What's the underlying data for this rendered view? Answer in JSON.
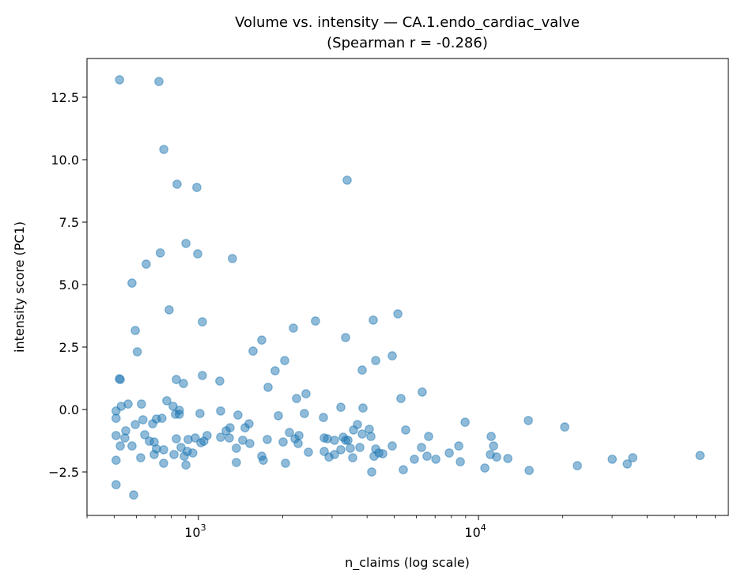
{
  "chart_data": {
    "type": "scatter",
    "title_line1": "Volume vs. intensity — CA.1.endo_cardiac_valve",
    "title_line2": "(Spearman r = -0.286)",
    "xlabel": "n_claims (log scale)",
    "ylabel": "intensity score (PC1)",
    "xscale": "log",
    "xlim": [
      400,
      78000
    ],
    "ylim": [
      -4.24,
      14.05
    ],
    "x_major_ticks": [
      {
        "value": 1000,
        "base": "10",
        "exp": "3"
      },
      {
        "value": 10000,
        "base": "10",
        "exp": "4"
      }
    ],
    "y_ticks": [
      {
        "value": -2.5,
        "label": "−2.5"
      },
      {
        "value": 0,
        "label": "0.0"
      },
      {
        "value": 2.5,
        "label": "2.5"
      },
      {
        "value": 5,
        "label": "5.0"
      },
      {
        "value": 7.5,
        "label": "7.5"
      },
      {
        "value": 10,
        "label": "10.0"
      },
      {
        "value": 12.5,
        "label": "12.5"
      }
    ],
    "grid": false,
    "marker_color": "#1f77b4",
    "marker_alpha": 0.5,
    "points": [
      [
        523,
        13.2
      ],
      [
        723,
        13.13
      ],
      [
        752,
        10.41
      ],
      [
        839,
        9.02
      ],
      [
        987,
        8.89
      ],
      [
        3396,
        9.18
      ],
      [
        902,
        6.65
      ],
      [
        731,
        6.27
      ],
      [
        994,
        6.23
      ],
      [
        1322,
        6.04
      ],
      [
        651,
        5.82
      ],
      [
        579,
        5.06
      ],
      [
        786,
        3.99
      ],
      [
        1033,
        3.51
      ],
      [
        595,
        3.16
      ],
      [
        605,
        2.31
      ],
      [
        2618,
        3.54
      ],
      [
        2183,
        3.26
      ],
      [
        4210,
        3.58
      ],
      [
        5152,
        3.83
      ],
      [
        3352,
        2.88
      ],
      [
        1567,
        2.34
      ],
      [
        1683,
        2.78
      ],
      [
        4922,
        2.15
      ],
      [
        4295,
        1.96
      ],
      [
        2032,
        1.96
      ],
      [
        1879,
        1.55
      ],
      [
        3844,
        1.58
      ],
      [
        522,
        1.23
      ],
      [
        508,
        -0.35
      ],
      [
        508,
        -0.06
      ],
      [
        530,
        0.13
      ],
      [
        561,
        0.22
      ],
      [
        626,
        0.22
      ],
      [
        771,
        0.35
      ],
      [
        812,
        0.13
      ],
      [
        855,
        -0.03
      ],
      [
        828,
        -0.19
      ],
      [
        855,
        -0.19
      ],
      [
        1013,
        -0.16
      ],
      [
        1200,
        -0.06
      ],
      [
        1384,
        -0.22
      ],
      [
        1929,
        -0.25
      ],
      [
        2390,
        -0.16
      ],
      [
        2795,
        -0.32
      ],
      [
        3225,
        0.09
      ],
      [
        2241,
        0.44
      ],
      [
        2421,
        0.63
      ],
      [
        1773,
        0.89
      ],
      [
        634,
        -0.41
      ],
      [
        595,
        -0.6
      ],
      [
        686,
        -0.57
      ],
      [
        708,
        -0.38
      ],
      [
        741,
        -0.35
      ],
      [
        550,
        -0.85
      ],
      [
        508,
        -1.04
      ],
      [
        546,
        -1.14
      ],
      [
        643,
        -1.01
      ],
      [
        668,
        -1.27
      ],
      [
        695,
        -1.3
      ],
      [
        526,
        -1.46
      ],
      [
        579,
        -1.46
      ],
      [
        708,
        -1.58
      ],
      [
        751,
        -1.61
      ],
      [
        695,
        -1.8
      ],
      [
        622,
        -1.93
      ],
      [
        508,
        -2.03
      ],
      [
        751,
        -2.15
      ],
      [
        818,
        -1.8
      ],
      [
        834,
        -1.17
      ],
      [
        867,
        -1.52
      ],
      [
        919,
        -1.2
      ],
      [
        974,
        -1.14
      ],
      [
        1020,
        -1.33
      ],
      [
        1046,
        -1.27
      ],
      [
        1074,
        -1.04
      ],
      [
        913,
        -1.68
      ],
      [
        955,
        -1.74
      ],
      [
        890,
        -1.87
      ],
      [
        902,
        -2.22
      ],
      [
        1200,
        -1.11
      ],
      [
        1289,
        -1.14
      ],
      [
        1256,
        -0.85
      ],
      [
        1297,
        -0.73
      ],
      [
        1439,
        -1.23
      ],
      [
        1366,
        -1.55
      ],
      [
        1526,
        -1.36
      ],
      [
        1467,
        -0.73
      ],
      [
        1516,
        -0.57
      ],
      [
        1366,
        -2.12
      ],
      [
        1683,
        -1.87
      ],
      [
        1704,
        -2.03
      ],
      [
        1761,
        -1.2
      ],
      [
        2006,
        -1.3
      ],
      [
        2113,
        -0.92
      ],
      [
        2211,
        -1.17
      ],
      [
        2285,
        -1.04
      ],
      [
        2270,
        -1.36
      ],
      [
        2470,
        -1.71
      ],
      [
        2045,
        -2.15
      ],
      [
        2813,
        -1.14
      ],
      [
        2887,
        -1.17
      ],
      [
        3062,
        -1.23
      ],
      [
        3289,
        -1.11
      ],
      [
        3352,
        -1.23
      ],
      [
        2813,
        -1.68
      ],
      [
        2925,
        -1.9
      ],
      [
        3062,
        -1.8
      ],
      [
        3225,
        -1.61
      ],
      [
        508,
        -3.01
      ],
      [
        587,
        -3.42
      ],
      [
        526,
        1.2
      ],
      [
        834,
        1.2
      ],
      [
        884,
        1.04
      ],
      [
        1192,
        1.14
      ],
      [
        1033,
        1.36
      ],
      [
        3420,
        -1.23
      ],
      [
        3487,
        -1.55
      ],
      [
        3554,
        -1.93
      ],
      [
        3577,
        -0.82
      ],
      [
        3697,
        -0.6
      ],
      [
        3869,
        0.06
      ],
      [
        3844,
        -0.98
      ],
      [
        4076,
        -0.79
      ],
      [
        4129,
        -1.08
      ],
      [
        3770,
        -1.52
      ],
      [
        4156,
        -2.5
      ],
      [
        4295,
        -1.58
      ],
      [
        4407,
        -1.74
      ],
      [
        4238,
        -1.87
      ],
      [
        4551,
        -1.77
      ],
      [
        4922,
        -1.46
      ],
      [
        5286,
        0.44
      ],
      [
        6296,
        0.7
      ],
      [
        5497,
        -0.82
      ],
      [
        5390,
        -2.41
      ],
      [
        5905,
        -1.99
      ],
      [
        6260,
        -1.52
      ],
      [
        6552,
        -1.87
      ],
      [
        6638,
        -1.08
      ],
      [
        7040,
        -1.99
      ],
      [
        7861,
        -1.74
      ],
      [
        8500,
        -1.46
      ],
      [
        8612,
        -2.09
      ],
      [
        8954,
        -0.51
      ],
      [
        10535,
        -2.34
      ],
      [
        11097,
        -1.08
      ],
      [
        11315,
        -1.46
      ],
      [
        11025,
        -1.8
      ],
      [
        11610,
        -1.9
      ],
      [
        12722,
        -1.96
      ],
      [
        15066,
        -0.44
      ],
      [
        15165,
        -2.44
      ],
      [
        20320,
        -0.7
      ],
      [
        22550,
        -2.25
      ],
      [
        30030,
        -1.99
      ],
      [
        33970,
        -2.18
      ],
      [
        35550,
        -1.93
      ],
      [
        61800,
        -1.84
      ]
    ]
  }
}
